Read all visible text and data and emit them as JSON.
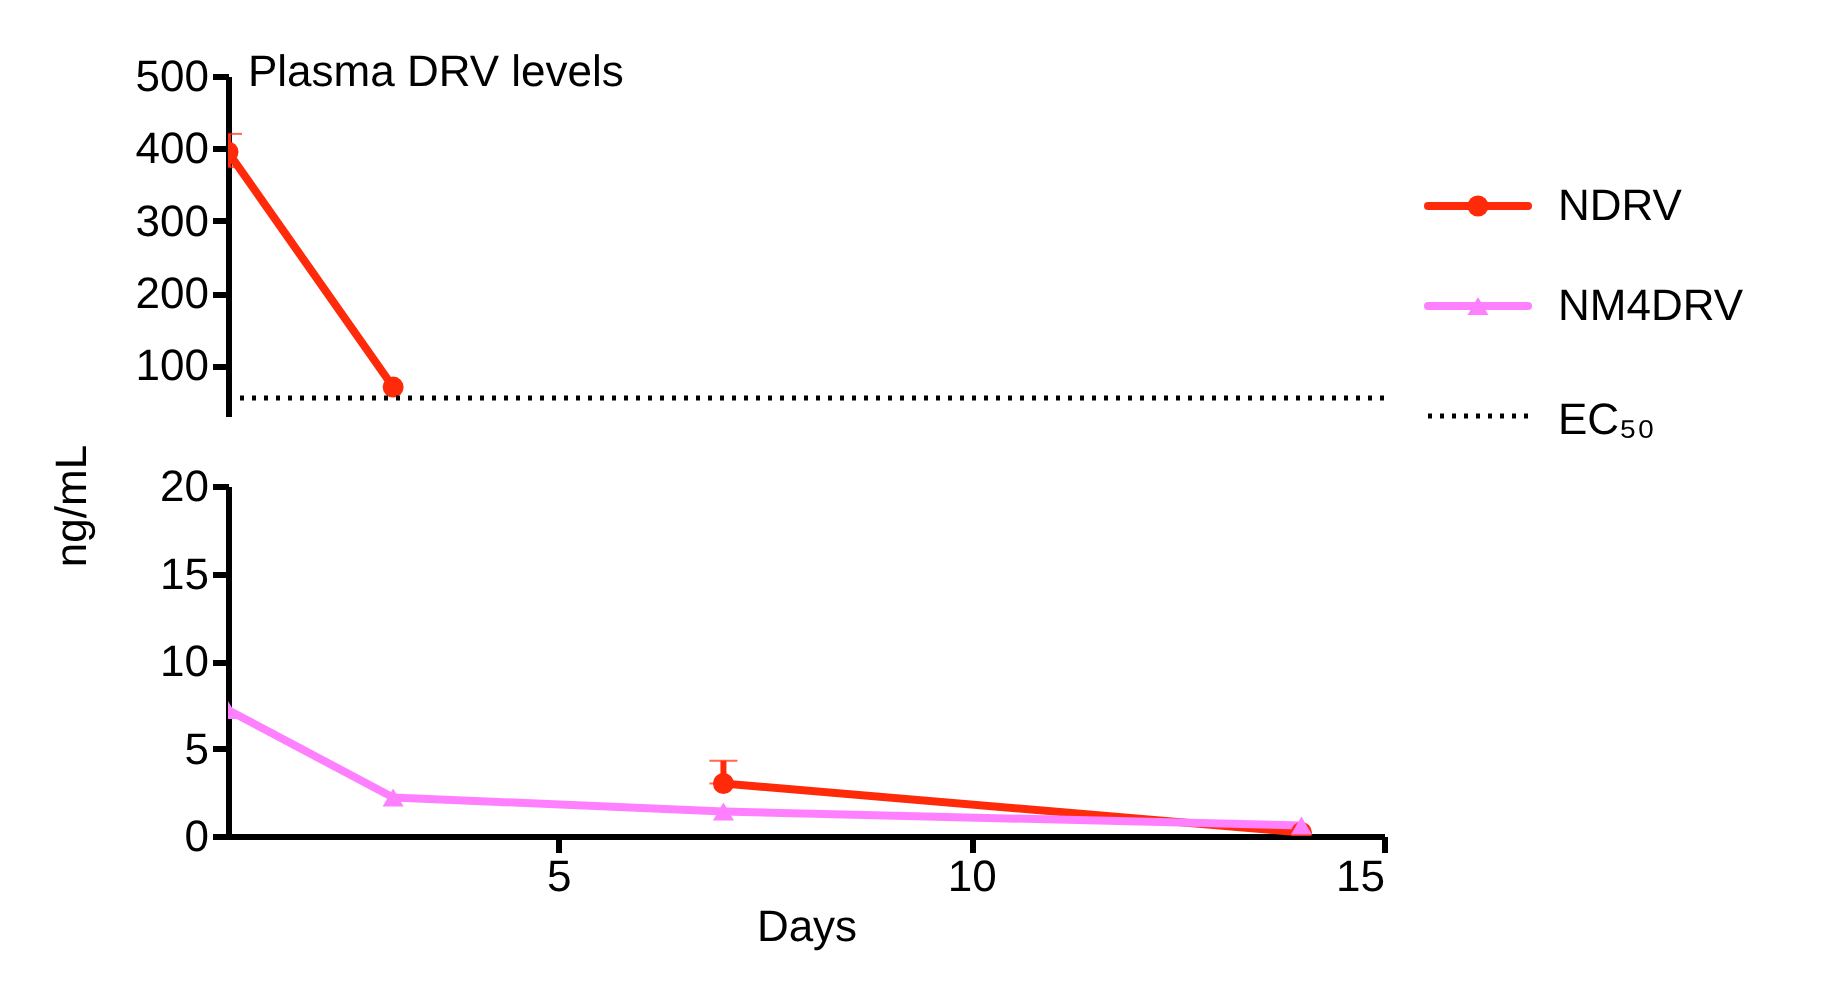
{
  "chart_data": [
    {
      "type": "line",
      "title": "Plasma DRV levels",
      "x": [
        1,
        3
      ],
      "xlim": [
        1,
        15
      ],
      "ylim": [
        30,
        500
      ],
      "yticks": [
        100,
        200,
        300,
        400,
        500
      ],
      "tick_labels": "y",
      "legend": "right",
      "series": [
        {
          "color": "#ff2a0a",
          "marker": "circle",
          "values": [
            395,
            70
          ],
          "errors": [
            [
              374,
              420
            ],
            null
          ]
        }
      ],
      "ref_lines": [
        {
          "axis": "y",
          "value": 55,
          "label": "EC₅₀",
          "color": "#000000",
          "line_style": "dotted"
        }
      ]
    },
    {
      "type": "line",
      "xlabel": "Days",
      "ylabel": "ng/mL",
      "x": [
        1,
        3,
        7,
        14
      ],
      "xlim": [
        1,
        15
      ],
      "xticks": [
        5,
        10,
        15
      ],
      "ylim": [
        0,
        20
      ],
      "yticks": [
        0,
        5,
        10,
        15,
        20
      ],
      "legend": "right",
      "series": [
        {
          "name": "NDRV",
          "color": "#ff2a0a",
          "marker": "circle",
          "values": [
            null,
            null,
            3,
            0.2
          ],
          "errors": [
            null,
            null,
            [
              3,
              4.3
            ],
            null
          ]
        },
        {
          "name": "NM4DRV",
          "color": "#ff80ff",
          "marker": "triangle",
          "values": [
            7.2,
            2.2,
            1.4,
            0.6
          ]
        }
      ]
    }
  ]
}
